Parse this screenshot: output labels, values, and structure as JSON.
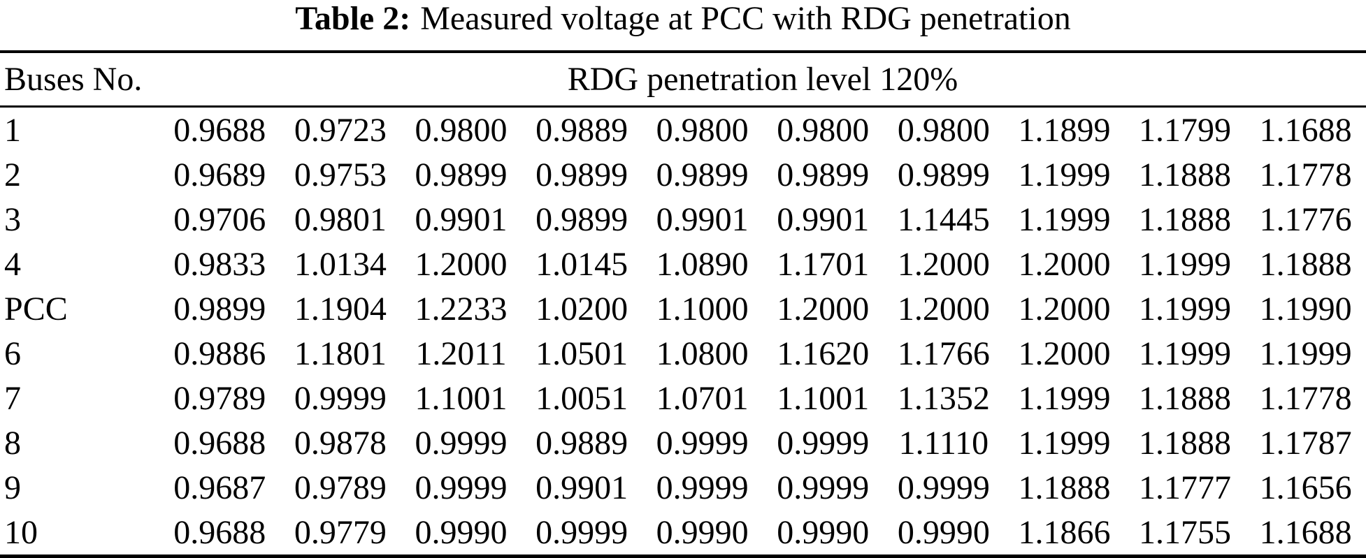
{
  "table": {
    "caption": {
      "label": "Table 2:",
      "text": "Measured voltage at PCC with RDG penetration"
    },
    "header": {
      "buses_col": "Buses No.",
      "span_col": "RDG penetration level 120%"
    },
    "rows": [
      {
        "bus": "1",
        "values": [
          "0.9688",
          "0.9723",
          "0.9800",
          "0.9889",
          "0.9800",
          "0.9800",
          "0.9800",
          "1.1899",
          "1.1799",
          "1.1688"
        ]
      },
      {
        "bus": "2",
        "values": [
          "0.9689",
          "0.9753",
          "0.9899",
          "0.9899",
          "0.9899",
          "0.9899",
          "0.9899",
          "1.1999",
          "1.1888",
          "1.1778"
        ]
      },
      {
        "bus": "3",
        "values": [
          "0.9706",
          "0.9801",
          "0.9901",
          "0.9899",
          "0.9901",
          "0.9901",
          "1.1445",
          "1.1999",
          "1.1888",
          "1.1776"
        ]
      },
      {
        "bus": "4",
        "values": [
          "0.9833",
          "1.0134",
          "1.2000",
          "1.0145",
          "1.0890",
          "1.1701",
          "1.2000",
          "1.2000",
          "1.1999",
          "1.1888"
        ]
      },
      {
        "bus": "PCC",
        "values": [
          "0.9899",
          "1.1904",
          "1.2233",
          "1.0200",
          "1.1000",
          "1.2000",
          "1.2000",
          "1.2000",
          "1.1999",
          "1.1990"
        ]
      },
      {
        "bus": "6",
        "values": [
          "0.9886",
          "1.1801",
          "1.2011",
          "1.0501",
          "1.0800",
          "1.1620",
          "1.1766",
          "1.2000",
          "1.1999",
          "1.1999"
        ]
      },
      {
        "bus": "7",
        "values": [
          "0.9789",
          "0.9999",
          "1.1001",
          "1.0051",
          "1.0701",
          "1.1001",
          "1.1352",
          "1.1999",
          "1.1888",
          "1.1778"
        ]
      },
      {
        "bus": "8",
        "values": [
          "0.9688",
          "0.9878",
          "0.9999",
          "0.9889",
          "0.9999",
          "0.9999",
          "1.1110",
          "1.1999",
          "1.1888",
          "1.1787"
        ]
      },
      {
        "bus": "9",
        "values": [
          "0.9687",
          "0.9789",
          "0.9999",
          "0.9901",
          "0.9999",
          "0.9999",
          "0.9999",
          "1.1888",
          "1.1777",
          "1.1656"
        ]
      },
      {
        "bus": "10",
        "values": [
          "0.9688",
          "0.9779",
          "0.9990",
          "0.9999",
          "0.9990",
          "0.9990",
          "0.9990",
          "1.1866",
          "1.1755",
          "1.1688"
        ]
      }
    ],
    "colors": {
      "text": "#000000",
      "background": "#ffffff",
      "rule": "#000000"
    }
  }
}
